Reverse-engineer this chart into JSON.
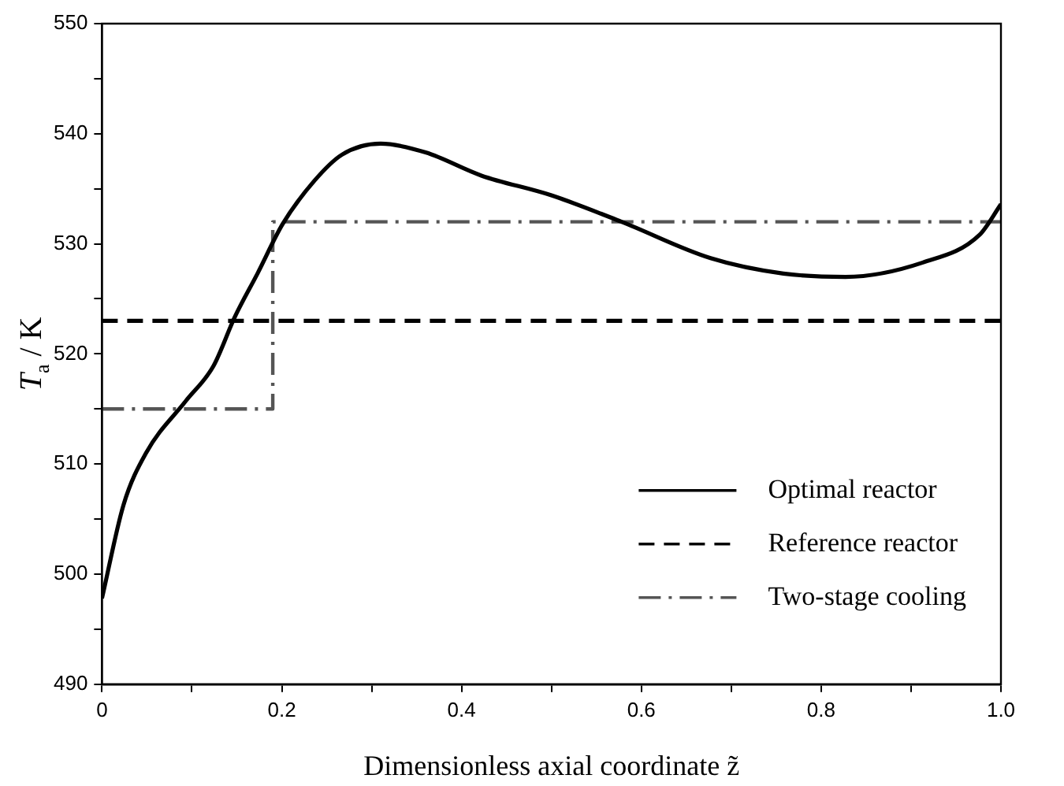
{
  "chart_data": {
    "type": "line",
    "xlabel": "Dimensionless axial coordinate z̃",
    "ylabel": "T$_{a}$ / K",
    "xlim": [
      0,
      1
    ],
    "xticks": [
      0,
      {
        "value": 0.1,
        "label": null
      },
      0.2,
      {
        "value": 0.3,
        "label": null
      },
      0.4,
      {
        "value": 0.5,
        "label": null
      },
      0.6,
      {
        "value": 0.7,
        "label": null
      },
      0.8,
      {
        "value": 0.9,
        "label": null
      },
      {
        "value": 1,
        "label": "1.0"
      }
    ],
    "ylim": [
      490,
      550
    ],
    "yticks": [
      490,
      {
        "value": 495,
        "label": null
      },
      500,
      {
        "value": 505,
        "label": null
      },
      510,
      {
        "value": 515,
        "label": null
      },
      520,
      {
        "value": 525,
        "label": null
      },
      530,
      {
        "value": 535,
        "label": null
      },
      540,
      {
        "value": 545,
        "label": null
      },
      550
    ],
    "grid": false,
    "legend": "bottom right",
    "marker": "none",
    "series": [
      {
        "name": "Optimal reactor",
        "color": "#000000",
        "line_style": "solid",
        "x": [
          0,
          0.024,
          0.049,
          0.093,
          0.124,
          0.148,
          0.173,
          0.201,
          0.236,
          0.267,
          0.31,
          0.36,
          0.422,
          0.5,
          0.578,
          0.677,
          0.758,
          0.827,
          0.913,
          0.976,
          1
        ],
        "values": [
          497.8,
          506.3,
          511,
          515.7,
          518.9,
          523.4,
          527.3,
          531.8,
          535.7,
          538.1,
          539.1,
          538.3,
          536.2,
          534.4,
          532,
          528.7,
          527.3,
          527,
          528.3,
          530.8,
          533.6
        ]
      },
      {
        "name": "Reference reactor",
        "color": "#000000",
        "line_style": "dashed",
        "x": [
          0,
          1
        ],
        "values": [
          523,
          523
        ]
      },
      {
        "name": "Two-stage cooling",
        "type": "step",
        "color": "#555555",
        "line_style": "dashdot",
        "x": [
          0,
          0.19,
          1
        ],
        "values": [
          515,
          532,
          532
        ]
      }
    ]
  }
}
